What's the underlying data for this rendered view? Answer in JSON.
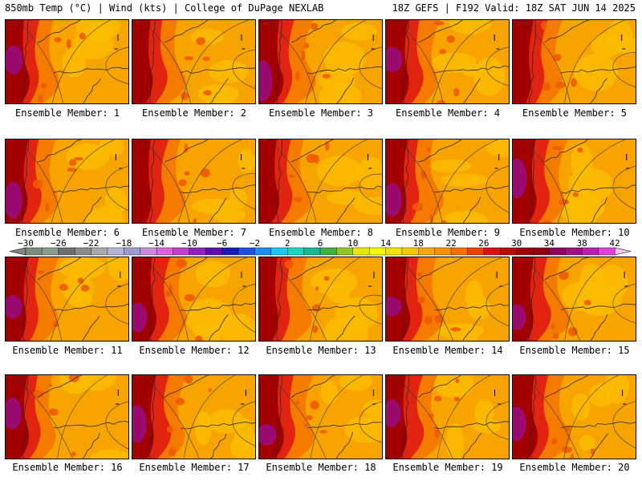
{
  "header": {
    "left": "850mb Temp (°C) | Wind (kts) | College of DuPage NEXLAB",
    "right": "18Z GEFS | F192 Valid: 18Z SAT JUN 14 2025"
  },
  "panels": [
    {
      "label": "Ensemble Member: 1",
      "west_heat": 0.9
    },
    {
      "label": "Ensemble Member: 2",
      "west_heat": 0.8
    },
    {
      "label": "Ensemble Member: 3",
      "west_heat": 0.9
    },
    {
      "label": "Ensemble Member: 4",
      "west_heat": 1.0
    },
    {
      "label": "Ensemble Member: 5",
      "west_heat": 0.8
    },
    {
      "label": "Ensemble Member: 6",
      "west_heat": 0.9
    },
    {
      "label": "Ensemble Member: 7",
      "west_heat": 0.85
    },
    {
      "label": "Ensemble Member: 8",
      "west_heat": 0.7
    },
    {
      "label": "Ensemble Member: 9",
      "west_heat": 0.95
    },
    {
      "label": "Ensemble Member: 10",
      "west_heat": 1.0
    },
    {
      "label": "Ensemble Member: 11",
      "west_heat": 0.95
    },
    {
      "label": "Ensemble Member: 12",
      "west_heat": 1.0
    },
    {
      "label": "Ensemble Member: 13",
      "west_heat": 0.8
    },
    {
      "label": "Ensemble Member: 14",
      "west_heat": 1.0
    },
    {
      "label": "Ensemble Member: 15",
      "west_heat": 0.9
    },
    {
      "label": "Ensemble Member: 16",
      "west_heat": 0.9
    },
    {
      "label": "Ensemble Member: 17",
      "west_heat": 0.95
    },
    {
      "label": "Ensemble Member: 18",
      "west_heat": 1.0
    },
    {
      "label": "Ensemble Member: 19",
      "west_heat": 0.9
    },
    {
      "label": "Ensemble Member: 20",
      "west_heat": 1.0
    }
  ],
  "colorbar": {
    "unit": "°C",
    "min": -30,
    "max": 42,
    "step": 2,
    "tick_labels": [
      "-30",
      "-26",
      "-22",
      "-18",
      "-14",
      "-10",
      "-6",
      "-2",
      "2",
      "6",
      "10",
      "14",
      "18",
      "22",
      "26",
      "30",
      "34",
      "38",
      "42"
    ],
    "colors": [
      "#7c8c7c",
      "#8c9c8c",
      "#6e6e6e",
      "#8a8a8a",
      "#a8a8a8",
      "#b4b4d8",
      "#9c9cd0",
      "#cc88dc",
      "#e060e0",
      "#c040d0",
      "#9020c0",
      "#6010b0",
      "#1a1ab4",
      "#2050e0",
      "#1e8cf0",
      "#18c8f0",
      "#18d8c0",
      "#18b890",
      "#40b040",
      "#90c820",
      "#e8e800",
      "#f8f800",
      "#f8e000",
      "#f8c800",
      "#f8a800",
      "#f89000",
      "#f87000",
      "#f04000",
      "#e01010",
      "#c00808",
      "#a00000",
      "#900010",
      "#900060",
      "#a01080",
      "#c020b0",
      "#e040e0"
    ]
  }
}
